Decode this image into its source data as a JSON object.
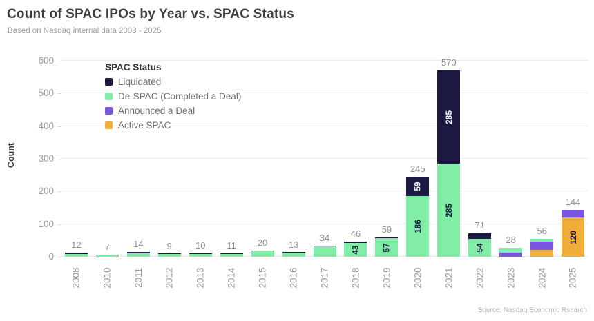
{
  "chart": {
    "title": "Count of SPAC IPOs by Year vs. SPAC Status",
    "subtitle": "Based on Nasdaq internal data 2008 - 2025",
    "ylabel": "Count",
    "source": "Source: Nasdaq Economic Rsearch",
    "legend": {
      "title": "SPAC Status"
    }
  },
  "chart_data": {
    "type": "bar",
    "subtype": "stacked-vertical",
    "title": "Count of SPAC IPOs by Year vs. SPAC Status",
    "subtitle": "Based on Nasdaq internal data 2008 - 2025",
    "xlabel": "",
    "ylabel": "Count",
    "ylim": [
      0,
      600
    ],
    "y_ticks": [
      0,
      100,
      200,
      300,
      400,
      500,
      600
    ],
    "grid": "horizontal",
    "legend_position": "top-left-inside",
    "stack_order_bottom_to_top": [
      "active",
      "announced",
      "despac",
      "liquidated"
    ],
    "statuses": {
      "liquidated": {
        "label": "Liquidated",
        "color": "#1c1942",
        "label_text_color": "#f2f2f5"
      },
      "despac": {
        "label": "De-SPAC (Completed a Deal)",
        "color": "#82eda6",
        "label_text_color": "#1c1942"
      },
      "announced": {
        "label": "Announced a Deal",
        "color": "#7a57e0",
        "label_text_color": "#1c1942"
      },
      "active": {
        "label": "Active SPAC",
        "color": "#f0ad38",
        "label_text_color": "#1c1942"
      }
    },
    "legend_order": [
      "liquidated",
      "despac",
      "announced",
      "active"
    ],
    "categories": [
      "2008",
      "2010",
      "2011",
      "2012",
      "2013",
      "2014",
      "2015",
      "2016",
      "2017",
      "2018",
      "2019",
      "2020",
      "2021",
      "2022",
      "2023",
      "2024",
      "2025"
    ],
    "bars": [
      {
        "year": "2008",
        "total": 12,
        "segments": [
          {
            "status": "despac",
            "value": 8
          },
          {
            "status": "liquidated",
            "value": 4
          }
        ]
      },
      {
        "year": "2010",
        "total": 7,
        "segments": [
          {
            "status": "despac",
            "value": 5
          },
          {
            "status": "liquidated",
            "value": 2
          }
        ]
      },
      {
        "year": "2011",
        "total": 14,
        "segments": [
          {
            "status": "despac",
            "value": 11
          },
          {
            "status": "liquidated",
            "value": 3
          }
        ]
      },
      {
        "year": "2012",
        "total": 9,
        "segments": [
          {
            "status": "despac",
            "value": 8
          },
          {
            "status": "liquidated",
            "value": 1
          }
        ]
      },
      {
        "year": "2013",
        "total": 10,
        "segments": [
          {
            "status": "despac",
            "value": 9
          },
          {
            "status": "liquidated",
            "value": 1
          }
        ]
      },
      {
        "year": "2014",
        "total": 11,
        "segments": [
          {
            "status": "despac",
            "value": 9
          },
          {
            "status": "liquidated",
            "value": 2
          }
        ]
      },
      {
        "year": "2015",
        "total": 20,
        "segments": [
          {
            "status": "despac",
            "value": 17
          },
          {
            "status": "liquidated",
            "value": 3
          }
        ]
      },
      {
        "year": "2016",
        "total": 13,
        "segments": [
          {
            "status": "despac",
            "value": 12
          },
          {
            "status": "liquidated",
            "value": 1
          }
        ]
      },
      {
        "year": "2017",
        "total": 34,
        "segments": [
          {
            "status": "despac",
            "value": 32
          },
          {
            "status": "liquidated",
            "value": 2
          }
        ]
      },
      {
        "year": "2018",
        "total": 46,
        "segments": [
          {
            "status": "despac",
            "value": 43,
            "label": "43"
          },
          {
            "status": "liquidated",
            "value": 3
          }
        ]
      },
      {
        "year": "2019",
        "total": 59,
        "segments": [
          {
            "status": "despac",
            "value": 57,
            "label": "57"
          },
          {
            "status": "liquidated",
            "value": 2
          }
        ]
      },
      {
        "year": "2020",
        "total": 245,
        "segments": [
          {
            "status": "despac",
            "value": 186,
            "label": "186"
          },
          {
            "status": "liquidated",
            "value": 59,
            "label": "59"
          }
        ]
      },
      {
        "year": "2021",
        "total": 570,
        "segments": [
          {
            "status": "despac",
            "value": 285,
            "label": "285"
          },
          {
            "status": "liquidated",
            "value": 285,
            "label": "285"
          }
        ]
      },
      {
        "year": "2022",
        "total": 71,
        "segments": [
          {
            "status": "despac",
            "value": 54,
            "label": "54"
          },
          {
            "status": "liquidated",
            "value": 17
          }
        ]
      },
      {
        "year": "2023",
        "total": 28,
        "segments": [
          {
            "status": "announced",
            "value": 13
          },
          {
            "status": "despac",
            "value": 15
          }
        ]
      },
      {
        "year": "2024",
        "total": 56,
        "segments": [
          {
            "status": "active",
            "value": 22
          },
          {
            "status": "announced",
            "value": 24
          },
          {
            "status": "despac",
            "value": 10
          }
        ]
      },
      {
        "year": "2025",
        "total": 144,
        "segments": [
          {
            "status": "active",
            "value": 120,
            "label": "120"
          },
          {
            "status": "announced",
            "value": 24
          }
        ]
      }
    ]
  }
}
